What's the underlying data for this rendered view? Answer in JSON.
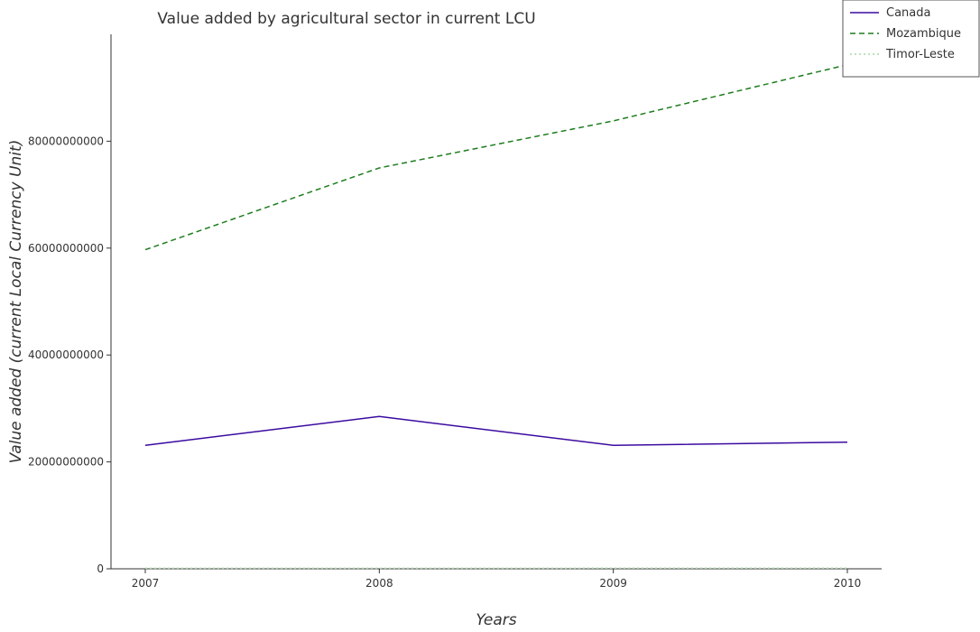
{
  "chart_data": {
    "type": "line",
    "title": "Value added by agricultural sector in current LCU",
    "xlabel": "Years",
    "ylabel": "Value added (current Local Currency Unit)",
    "x": [
      2007,
      2008,
      2009,
      2010
    ],
    "x_tick_labels": [
      "2007",
      "2008",
      "2009",
      "2010"
    ],
    "ylim": [
      0,
      100000000000
    ],
    "y_ticks": [
      0,
      20000000000,
      40000000000,
      60000000000,
      80000000000
    ],
    "y_tick_labels": [
      "0",
      "20000000000",
      "40000000000",
      "60000000000",
      "80000000000"
    ],
    "legend_position": "top-right",
    "grid": false,
    "series": [
      {
        "name": "Canada",
        "color": "#3b0aa0",
        "dash": "solid",
        "values": [
          23100000000,
          28500000000,
          23100000000,
          23700000000
        ]
      },
      {
        "name": "Mozambique",
        "color": "#1e7d1e",
        "dash": "dashed",
        "values": [
          59700000000,
          75000000000,
          83800000000,
          94300000000
        ]
      },
      {
        "name": "Timor-Leste",
        "color": "#a8d9a8",
        "dash": "dotted",
        "values": [
          97000000,
          105000000,
          110000000,
          118000000
        ]
      }
    ]
  }
}
